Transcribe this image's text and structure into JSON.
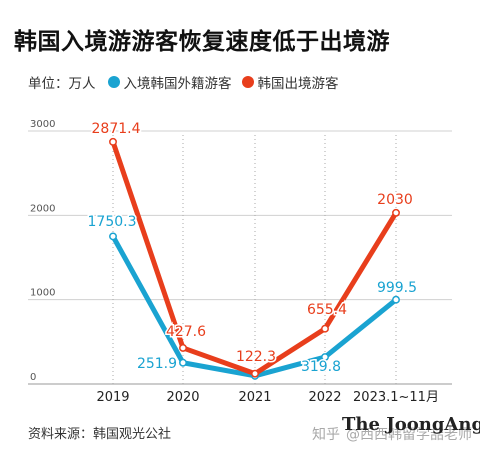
{
  "title": "韩国入境游游客恢复速度低于出境游",
  "legend": {
    "unit": "单位：万人",
    "items": [
      {
        "label": "入境韩国外籍游客",
        "color": "#1aa3d1"
      },
      {
        "label": "韩国出境游客",
        "color": "#e83e1c"
      }
    ]
  },
  "source": "资料来源：韩国观光公社",
  "brand": "The JoongAng",
  "watermark": {
    "logo": "知乎",
    "text": "@西西韩留学喆老师"
  },
  "chart_data": {
    "type": "line",
    "categories": [
      "2019",
      "2020",
      "2021",
      "2022",
      "2023.1~11月"
    ],
    "ylim": [
      0,
      3000
    ],
    "yticks": [
      0,
      1000,
      2000,
      3000
    ],
    "series": [
      {
        "name": "入境韩国外籍游客",
        "color": "#1aa3d1",
        "values": [
          1750.3,
          251.9,
          96.7,
          319.8,
          999.5
        ],
        "labels": [
          "1750.3",
          "251.9",
          "",
          "319.8",
          "999.5"
        ]
      },
      {
        "name": "韩国出境游客",
        "color": "#e83e1c",
        "values": [
          2871.4,
          427.6,
          122.3,
          655.4,
          2030
        ],
        "labels": [
          "2871.4",
          "427.6",
          "122.3",
          "655.4",
          "2030"
        ]
      }
    ]
  }
}
